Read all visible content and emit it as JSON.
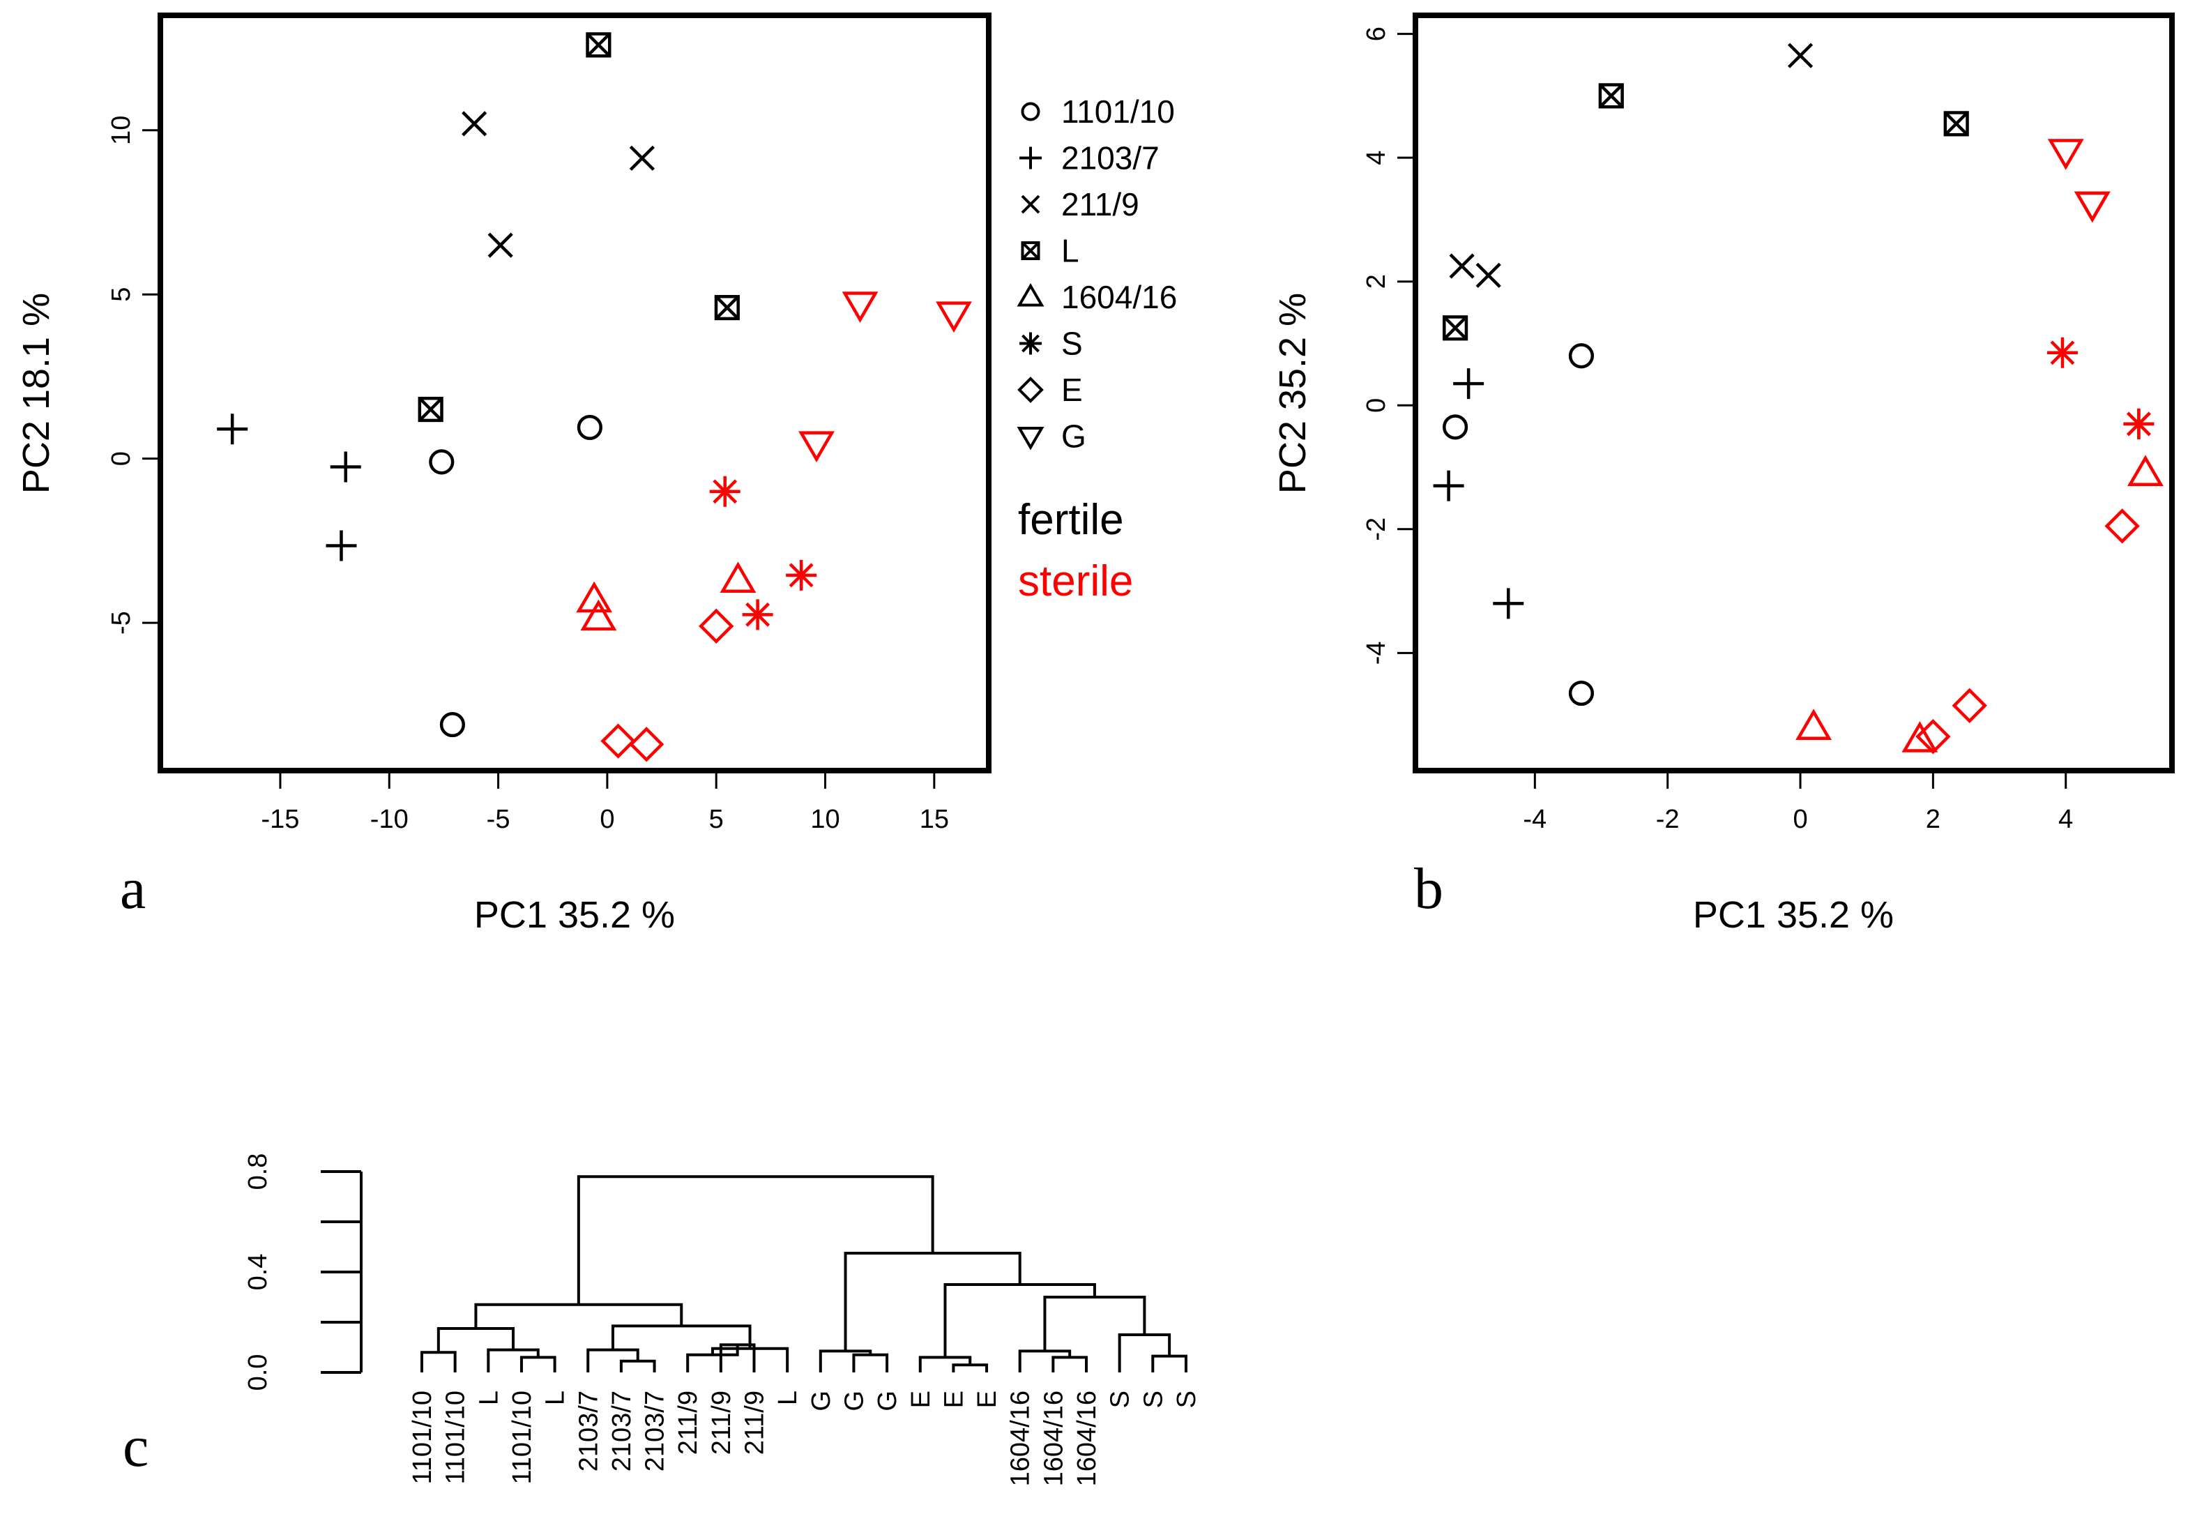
{
  "figure": {
    "palette": {
      "fertile": "#000000",
      "sterile": "#ff0000"
    },
    "legend": {
      "groups": [
        {
          "name": "1101/10",
          "marker": "circle",
          "icon": "circle-marker-icon"
        },
        {
          "name": "2103/7",
          "marker": "plus",
          "icon": "plus-marker-icon"
        },
        {
          "name": "211/9",
          "marker": "cross",
          "icon": "cross-marker-icon"
        },
        {
          "name": "L",
          "marker": "boxcross",
          "icon": "boxed-cross-marker-icon"
        },
        {
          "name": "1604/16",
          "marker": "triangle",
          "icon": "triangle-marker-icon"
        },
        {
          "name": "S",
          "marker": "asterisk",
          "icon": "asterisk-marker-icon"
        },
        {
          "name": "E",
          "marker": "diamond",
          "icon": "diamond-marker-icon"
        },
        {
          "name": "G",
          "marker": "triangle-down",
          "icon": "down-triangle-marker-icon"
        }
      ],
      "fertile_label": "fertile",
      "sterile_label": "sterile"
    }
  },
  "chart_data": [
    {
      "panel": "a",
      "type": "scatter",
      "xlabel": "PC1 35.2 %",
      "ylabel": "PC2 18.1 %",
      "xlim": [
        -20.5,
        17.5
      ],
      "ylim": [
        -9.5,
        13.5
      ],
      "xticks": [
        -15,
        -10,
        -5,
        0,
        5,
        10,
        15
      ],
      "yticks": [
        -5,
        0,
        5,
        10
      ],
      "points": [
        {
          "group": "1101/10",
          "status": "fertile",
          "x": -0.8,
          "y": 0.95
        },
        {
          "group": "1101/10",
          "status": "fertile",
          "x": -7.6,
          "y": -0.1
        },
        {
          "group": "1101/10",
          "status": "fertile",
          "x": -7.1,
          "y": -8.1
        },
        {
          "group": "2103/7",
          "status": "fertile",
          "x": -17.2,
          "y": 0.9
        },
        {
          "group": "2103/7",
          "status": "fertile",
          "x": -12.0,
          "y": -0.25
        },
        {
          "group": "2103/7",
          "status": "fertile",
          "x": -12.2,
          "y": -2.65
        },
        {
          "group": "211/9",
          "status": "fertile",
          "x": -6.1,
          "y": 10.2
        },
        {
          "group": "211/9",
          "status": "fertile",
          "x": 1.6,
          "y": 9.15
        },
        {
          "group": "211/9",
          "status": "fertile",
          "x": -4.9,
          "y": 6.5
        },
        {
          "group": "L",
          "status": "fertile",
          "x": -0.4,
          "y": 12.6
        },
        {
          "group": "L",
          "status": "fertile",
          "x": 5.5,
          "y": 4.6
        },
        {
          "group": "L",
          "status": "fertile",
          "x": -8.1,
          "y": 1.5
        },
        {
          "group": "1604/16",
          "status": "sterile",
          "x": -0.6,
          "y": -4.3
        },
        {
          "group": "1604/16",
          "status": "sterile",
          "x": -0.4,
          "y": -4.85
        },
        {
          "group": "1604/16",
          "status": "sterile",
          "x": 6.0,
          "y": -3.7
        },
        {
          "group": "S",
          "status": "sterile",
          "x": 5.4,
          "y": -1.0
        },
        {
          "group": "S",
          "status": "sterile",
          "x": 8.9,
          "y": -3.55
        },
        {
          "group": "S",
          "status": "sterile",
          "x": 6.9,
          "y": -4.75
        },
        {
          "group": "E",
          "status": "sterile",
          "x": 5.0,
          "y": -5.1
        },
        {
          "group": "E",
          "status": "sterile",
          "x": 0.5,
          "y": -8.6
        },
        {
          "group": "E",
          "status": "sterile",
          "x": 1.8,
          "y": -8.7
        },
        {
          "group": "G",
          "status": "sterile",
          "x": 11.6,
          "y": 4.7
        },
        {
          "group": "G",
          "status": "sterile",
          "x": 15.9,
          "y": 4.4
        },
        {
          "group": "G",
          "status": "sterile",
          "x": 9.6,
          "y": 0.45
        }
      ]
    },
    {
      "panel": "b",
      "type": "scatter",
      "xlabel": "PC1 35.2 %",
      "ylabel": "PC2 35.2 %",
      "xlim": [
        -5.8,
        5.6
      ],
      "ylim": [
        -5.9,
        6.3
      ],
      "xticks": [
        -4,
        -2,
        0,
        2,
        4
      ],
      "yticks": [
        -4,
        -2,
        0,
        2,
        4,
        6
      ],
      "points": [
        {
          "group": "1101/10",
          "status": "fertile",
          "x": -3.3,
          "y": 0.8
        },
        {
          "group": "1101/10",
          "status": "fertile",
          "x": -5.2,
          "y": -0.35
        },
        {
          "group": "1101/10",
          "status": "fertile",
          "x": -3.3,
          "y": -4.65
        },
        {
          "group": "2103/7",
          "status": "fertile",
          "x": -5.0,
          "y": 0.35
        },
        {
          "group": "2103/7",
          "status": "fertile",
          "x": -5.3,
          "y": -1.3
        },
        {
          "group": "2103/7",
          "status": "fertile",
          "x": -4.4,
          "y": -3.2
        },
        {
          "group": "211/9",
          "status": "fertile",
          "x": 0.0,
          "y": 5.65
        },
        {
          "group": "211/9",
          "status": "fertile",
          "x": -5.1,
          "y": 2.25
        },
        {
          "group": "211/9",
          "status": "fertile",
          "x": -4.7,
          "y": 2.1
        },
        {
          "group": "L",
          "status": "fertile",
          "x": -2.85,
          "y": 5.0
        },
        {
          "group": "L",
          "status": "fertile",
          "x": 2.35,
          "y": 4.55
        },
        {
          "group": "L",
          "status": "fertile",
          "x": -5.2,
          "y": 1.25
        },
        {
          "group": "1604/16",
          "status": "sterile",
          "x": 5.2,
          "y": -1.1
        },
        {
          "group": "1604/16",
          "status": "sterile",
          "x": 0.2,
          "y": -5.2
        },
        {
          "group": "1604/16",
          "status": "sterile",
          "x": 1.8,
          "y": -5.4
        },
        {
          "group": "S",
          "status": "sterile",
          "x": 3.95,
          "y": 0.85
        },
        {
          "group": "S",
          "status": "sterile",
          "x": 5.1,
          "y": -0.3
        },
        {
          "group": "S",
          "status": "sterile",
          "x": 5.1,
          "y": -0.3
        },
        {
          "group": "E",
          "status": "sterile",
          "x": 4.85,
          "y": -1.95
        },
        {
          "group": "E",
          "status": "sterile",
          "x": 2.55,
          "y": -4.85
        },
        {
          "group": "E",
          "status": "sterile",
          "x": 2.0,
          "y": -5.35
        },
        {
          "group": "G",
          "status": "sterile",
          "x": 4.0,
          "y": 4.1
        },
        {
          "group": "G",
          "status": "sterile",
          "x": 4.4,
          "y": 3.25
        },
        {
          "group": "G",
          "status": "sterile",
          "x": 4.4,
          "y": 3.25
        }
      ]
    },
    {
      "panel": "c",
      "type": "dendrogram",
      "ylim": [
        0,
        0.8
      ],
      "yticks": [
        "0.0",
        "0.4",
        "0.8"
      ],
      "leaves": [
        "1101/10",
        "1101/10",
        "L",
        "1101/10",
        "L",
        "2103/7",
        "2103/7",
        "2103/7",
        "211/9",
        "211/9",
        "211/9",
        "L",
        "G",
        "G",
        "G",
        "E",
        "E",
        "E",
        "1604/16",
        "1604/16",
        "1604/16",
        "S",
        "S",
        "S"
      ],
      "merges": [
        {
          "a": 0,
          "b": 1,
          "h": 0.08
        },
        {
          "a": 3,
          "b": 4,
          "h": 0.06
        },
        {
          "a": 2,
          "b": 1002,
          "h": 0.09
        },
        {
          "a": 1001,
          "b": 1003,
          "h": 0.175
        },
        {
          "a": 6,
          "b": 7,
          "h": 0.045
        },
        {
          "a": 5,
          "b": 1005,
          "h": 0.09
        },
        {
          "a": 9,
          "b": 10,
          "h": 0.11
        },
        {
          "a": 8,
          "b": 1007,
          "h": 0.07
        },
        {
          "a": 11,
          "b": 1008,
          "h": 0.095
        },
        {
          "a": 1006,
          "b": 1009,
          "h": 0.185
        },
        {
          "a": 1004,
          "b": 1010,
          "h": 0.27
        },
        {
          "a": 13,
          "b": 14,
          "h": 0.07
        },
        {
          "a": 12,
          "b": 1012,
          "h": 0.085
        },
        {
          "a": 16,
          "b": 17,
          "h": 0.03
        },
        {
          "a": 15,
          "b": 1014,
          "h": 0.06
        },
        {
          "a": 19,
          "b": 20,
          "h": 0.06
        },
        {
          "a": 18,
          "b": 1016,
          "h": 0.085
        },
        {
          "a": 22,
          "b": 23,
          "h": 0.065
        },
        {
          "a": 21,
          "b": 1018,
          "h": 0.15
        },
        {
          "a": 1017,
          "b": 1019,
          "h": 0.3
        },
        {
          "a": 1015,
          "b": 1020,
          "h": 0.35
        },
        {
          "a": 1013,
          "b": 1021,
          "h": 0.475
        },
        {
          "a": 1011,
          "b": 1022,
          "h": 0.78
        }
      ]
    }
  ]
}
